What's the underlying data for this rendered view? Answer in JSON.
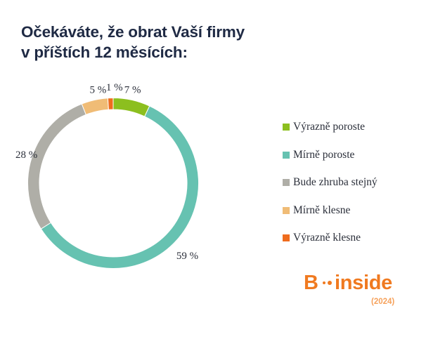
{
  "header": {
    "title_line1": "Očekáváte, že obrat Vaší firmy",
    "title_line2": "v příštích 12 měsících:"
  },
  "chart_data": {
    "type": "pie",
    "variant": "donut",
    "title": "Očekáváte, že obrat Vaší firmy v příštích 12 měsících:",
    "categories": [
      "Výrazně poroste",
      "Mírně poroste",
      "Bude zhruba stejný",
      "Mírně klesne",
      "Výrazně klesne"
    ],
    "values": [
      7,
      59,
      28,
      5,
      1
    ],
    "unit": "%",
    "data_labels": [
      "7 %",
      "59 %",
      "28 %",
      "5 %",
      "1 %"
    ],
    "colors": [
      "#8cbf1f",
      "#66c2b1",
      "#afaea7",
      "#f0bc76",
      "#ef6c1e"
    ],
    "legend_position": "right"
  },
  "logo": {
    "letter": "B",
    "word": "inside",
    "year": "(2024)",
    "color": "#f07a20"
  }
}
